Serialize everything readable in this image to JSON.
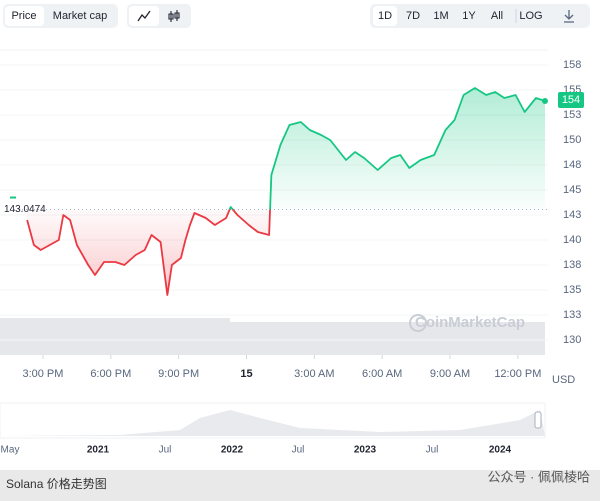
{
  "chart_data": {
    "type": "line",
    "x": [
      14.3,
      14.6,
      14.9,
      15.3,
      15.7,
      15.9,
      16.2,
      16.5,
      17.0,
      17.3,
      17.7,
      18.2,
      18.6,
      19.1,
      19.5,
      19.8,
      20.2,
      20.5,
      20.7,
      21.1,
      21.3,
      21.5,
      21.7,
      22.2,
      22.6,
      23.1,
      23.3,
      23.6,
      24.1,
      24.5,
      25.0,
      25.1,
      25.5,
      25.9,
      26.4,
      26.8,
      27.3,
      27.7,
      28.4,
      28.8,
      29.2,
      29.8,
      30.4,
      30.8,
      31.2,
      31.7,
      32.3,
      32.8,
      33.2,
      33.6,
      34.1,
      34.6,
      35.0,
      35.4,
      35.9,
      36.3,
      36.8,
      37.2
    ],
    "series": [
      {
        "name": "Price",
        "values": [
          142,
          139.5,
          139,
          139.5,
          140,
          142.5,
          142,
          139.5,
          137.5,
          136.5,
          137.8,
          137.8,
          137.5,
          138.5,
          139,
          140.5,
          139.8,
          134.5,
          137.5,
          138.2,
          140,
          141.5,
          142.7,
          142.2,
          141.5,
          142.2,
          143.3,
          142.5,
          141.5,
          140.8,
          140.5,
          146.5,
          149.5,
          151.5,
          151.8,
          151,
          150.5,
          150,
          148,
          148.8,
          148.2,
          147,
          148.2,
          148.5,
          147.2,
          148,
          148.5,
          151,
          152,
          154.5,
          155.2,
          154.5,
          154.8,
          154.2,
          154.5,
          152.8,
          154.2,
          153.9
        ]
      }
    ],
    "up_color": "#16c784",
    "down_color": "#ea3943",
    "baseline": 143.0474,
    "current_price": 154,
    "xlim": [
      13.1,
      37.2
    ],
    "xticks": [
      {
        "value": 15,
        "label": "3:00 PM"
      },
      {
        "value": 18,
        "label": "6:00 PM"
      },
      {
        "value": 21,
        "label": "9:00 PM"
      },
      {
        "value": 24,
        "label": "15"
      },
      {
        "value": 27,
        "label": "3:00 AM"
      },
      {
        "value": 30,
        "label": "6:00 AM"
      },
      {
        "value": 33,
        "label": "9:00 AM"
      },
      {
        "value": 36,
        "label": "12:00 PM"
      }
    ],
    "ylim": [
      128.5,
      159
    ],
    "yticks": [
      {
        "value": 157.5,
        "label": "158"
      },
      155,
      {
        "value": 152.5,
        "label": "153"
      },
      150,
      {
        "value": 147.5,
        "label": "148"
      },
      145,
      {
        "value": 142.5,
        "label": "143"
      },
      140,
      {
        "value": 137.5,
        "label": "138"
      },
      135,
      {
        "value": 132.5,
        "label": "133"
      },
      130
    ],
    "y_unit": "USD",
    "watermark": "CoinMarketCap",
    "grid": true
  },
  "toolbar": {
    "metrics": [
      "Price",
      "Market cap"
    ],
    "ranges": [
      "1D",
      "7D",
      "1M",
      "1Y",
      "All",
      "LOG"
    ]
  },
  "navigator": {
    "labels": [
      "May",
      "2021",
      "Jul",
      "2022",
      "Jul",
      "2023",
      "Jul",
      "2024"
    ]
  },
  "footer": {
    "caption": "Solana 价格走势图",
    "watermark": "公众号 · 佩佩棱哈"
  }
}
